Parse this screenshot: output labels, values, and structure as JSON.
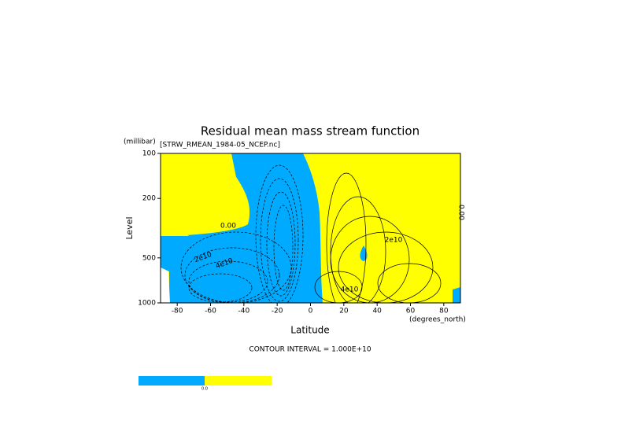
{
  "chart_data": {
    "type": "contour",
    "title": "Residual mean mass stream function",
    "subtitle": "[STRW_RMEAN_1984-05_NCEP.nc]",
    "y_unit": "(millibar)",
    "y_label": "Level",
    "x_label": "Latitude",
    "x_unit": "(degrees_north)",
    "footer": "CONTOUR INTERVAL = 1.000E+10",
    "xlim": [
      -90,
      90
    ],
    "xticks": [
      -80,
      -60,
      -40,
      -20,
      0,
      20,
      40,
      60,
      80
    ],
    "ylim": [
      1000,
      100
    ],
    "yticks": [
      100,
      200,
      500,
      1000
    ],
    "log_y": true,
    "colors": [
      "#00aaff",
      "#ffff00"
    ],
    "colorbar_label": "0.0",
    "contour_labels": [
      "0.00",
      "2e10",
      "4e10",
      "2e10",
      "4e10",
      "0.00"
    ]
  }
}
